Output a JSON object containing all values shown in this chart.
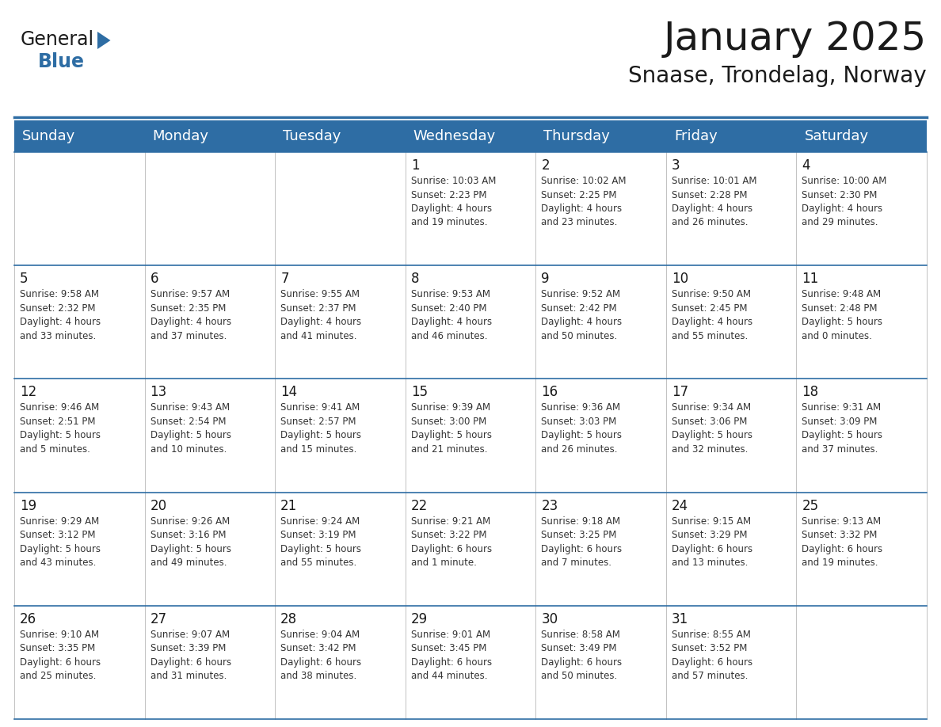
{
  "title": "January 2025",
  "subtitle": "Snaase, Trondelag, Norway",
  "header_color": "#2E6DA4",
  "header_text_color": "#FFFFFF",
  "cell_bg_color": "#FFFFFF",
  "border_color": "#2E6DA4",
  "grid_line_color": "#AAAAAA",
  "days_of_week": [
    "Sunday",
    "Monday",
    "Tuesday",
    "Wednesday",
    "Thursday",
    "Friday",
    "Saturday"
  ],
  "title_fontsize": 36,
  "subtitle_fontsize": 20,
  "day_header_fontsize": 13,
  "cell_date_fontsize": 12,
  "cell_text_fontsize": 8.5,
  "logo_general_fontsize": 17,
  "logo_blue_fontsize": 17,
  "calendar_data": [
    [
      {
        "day": "",
        "text": ""
      },
      {
        "day": "",
        "text": ""
      },
      {
        "day": "",
        "text": ""
      },
      {
        "day": "1",
        "text": "Sunrise: 10:03 AM\nSunset: 2:23 PM\nDaylight: 4 hours\nand 19 minutes."
      },
      {
        "day": "2",
        "text": "Sunrise: 10:02 AM\nSunset: 2:25 PM\nDaylight: 4 hours\nand 23 minutes."
      },
      {
        "day": "3",
        "text": "Sunrise: 10:01 AM\nSunset: 2:28 PM\nDaylight: 4 hours\nand 26 minutes."
      },
      {
        "day": "4",
        "text": "Sunrise: 10:00 AM\nSunset: 2:30 PM\nDaylight: 4 hours\nand 29 minutes."
      }
    ],
    [
      {
        "day": "5",
        "text": "Sunrise: 9:58 AM\nSunset: 2:32 PM\nDaylight: 4 hours\nand 33 minutes."
      },
      {
        "day": "6",
        "text": "Sunrise: 9:57 AM\nSunset: 2:35 PM\nDaylight: 4 hours\nand 37 minutes."
      },
      {
        "day": "7",
        "text": "Sunrise: 9:55 AM\nSunset: 2:37 PM\nDaylight: 4 hours\nand 41 minutes."
      },
      {
        "day": "8",
        "text": "Sunrise: 9:53 AM\nSunset: 2:40 PM\nDaylight: 4 hours\nand 46 minutes."
      },
      {
        "day": "9",
        "text": "Sunrise: 9:52 AM\nSunset: 2:42 PM\nDaylight: 4 hours\nand 50 minutes."
      },
      {
        "day": "10",
        "text": "Sunrise: 9:50 AM\nSunset: 2:45 PM\nDaylight: 4 hours\nand 55 minutes."
      },
      {
        "day": "11",
        "text": "Sunrise: 9:48 AM\nSunset: 2:48 PM\nDaylight: 5 hours\nand 0 minutes."
      }
    ],
    [
      {
        "day": "12",
        "text": "Sunrise: 9:46 AM\nSunset: 2:51 PM\nDaylight: 5 hours\nand 5 minutes."
      },
      {
        "day": "13",
        "text": "Sunrise: 9:43 AM\nSunset: 2:54 PM\nDaylight: 5 hours\nand 10 minutes."
      },
      {
        "day": "14",
        "text": "Sunrise: 9:41 AM\nSunset: 2:57 PM\nDaylight: 5 hours\nand 15 minutes."
      },
      {
        "day": "15",
        "text": "Sunrise: 9:39 AM\nSunset: 3:00 PM\nDaylight: 5 hours\nand 21 minutes."
      },
      {
        "day": "16",
        "text": "Sunrise: 9:36 AM\nSunset: 3:03 PM\nDaylight: 5 hours\nand 26 minutes."
      },
      {
        "day": "17",
        "text": "Sunrise: 9:34 AM\nSunset: 3:06 PM\nDaylight: 5 hours\nand 32 minutes."
      },
      {
        "day": "18",
        "text": "Sunrise: 9:31 AM\nSunset: 3:09 PM\nDaylight: 5 hours\nand 37 minutes."
      }
    ],
    [
      {
        "day": "19",
        "text": "Sunrise: 9:29 AM\nSunset: 3:12 PM\nDaylight: 5 hours\nand 43 minutes."
      },
      {
        "day": "20",
        "text": "Sunrise: 9:26 AM\nSunset: 3:16 PM\nDaylight: 5 hours\nand 49 minutes."
      },
      {
        "day": "21",
        "text": "Sunrise: 9:24 AM\nSunset: 3:19 PM\nDaylight: 5 hours\nand 55 minutes."
      },
      {
        "day": "22",
        "text": "Sunrise: 9:21 AM\nSunset: 3:22 PM\nDaylight: 6 hours\nand 1 minute."
      },
      {
        "day": "23",
        "text": "Sunrise: 9:18 AM\nSunset: 3:25 PM\nDaylight: 6 hours\nand 7 minutes."
      },
      {
        "day": "24",
        "text": "Sunrise: 9:15 AM\nSunset: 3:29 PM\nDaylight: 6 hours\nand 13 minutes."
      },
      {
        "day": "25",
        "text": "Sunrise: 9:13 AM\nSunset: 3:32 PM\nDaylight: 6 hours\nand 19 minutes."
      }
    ],
    [
      {
        "day": "26",
        "text": "Sunrise: 9:10 AM\nSunset: 3:35 PM\nDaylight: 6 hours\nand 25 minutes."
      },
      {
        "day": "27",
        "text": "Sunrise: 9:07 AM\nSunset: 3:39 PM\nDaylight: 6 hours\nand 31 minutes."
      },
      {
        "day": "28",
        "text": "Sunrise: 9:04 AM\nSunset: 3:42 PM\nDaylight: 6 hours\nand 38 minutes."
      },
      {
        "day": "29",
        "text": "Sunrise: 9:01 AM\nSunset: 3:45 PM\nDaylight: 6 hours\nand 44 minutes."
      },
      {
        "day": "30",
        "text": "Sunrise: 8:58 AM\nSunset: 3:49 PM\nDaylight: 6 hours\nand 50 minutes."
      },
      {
        "day": "31",
        "text": "Sunrise: 8:55 AM\nSunset: 3:52 PM\nDaylight: 6 hours\nand 57 minutes."
      },
      {
        "day": "",
        "text": ""
      }
    ]
  ]
}
